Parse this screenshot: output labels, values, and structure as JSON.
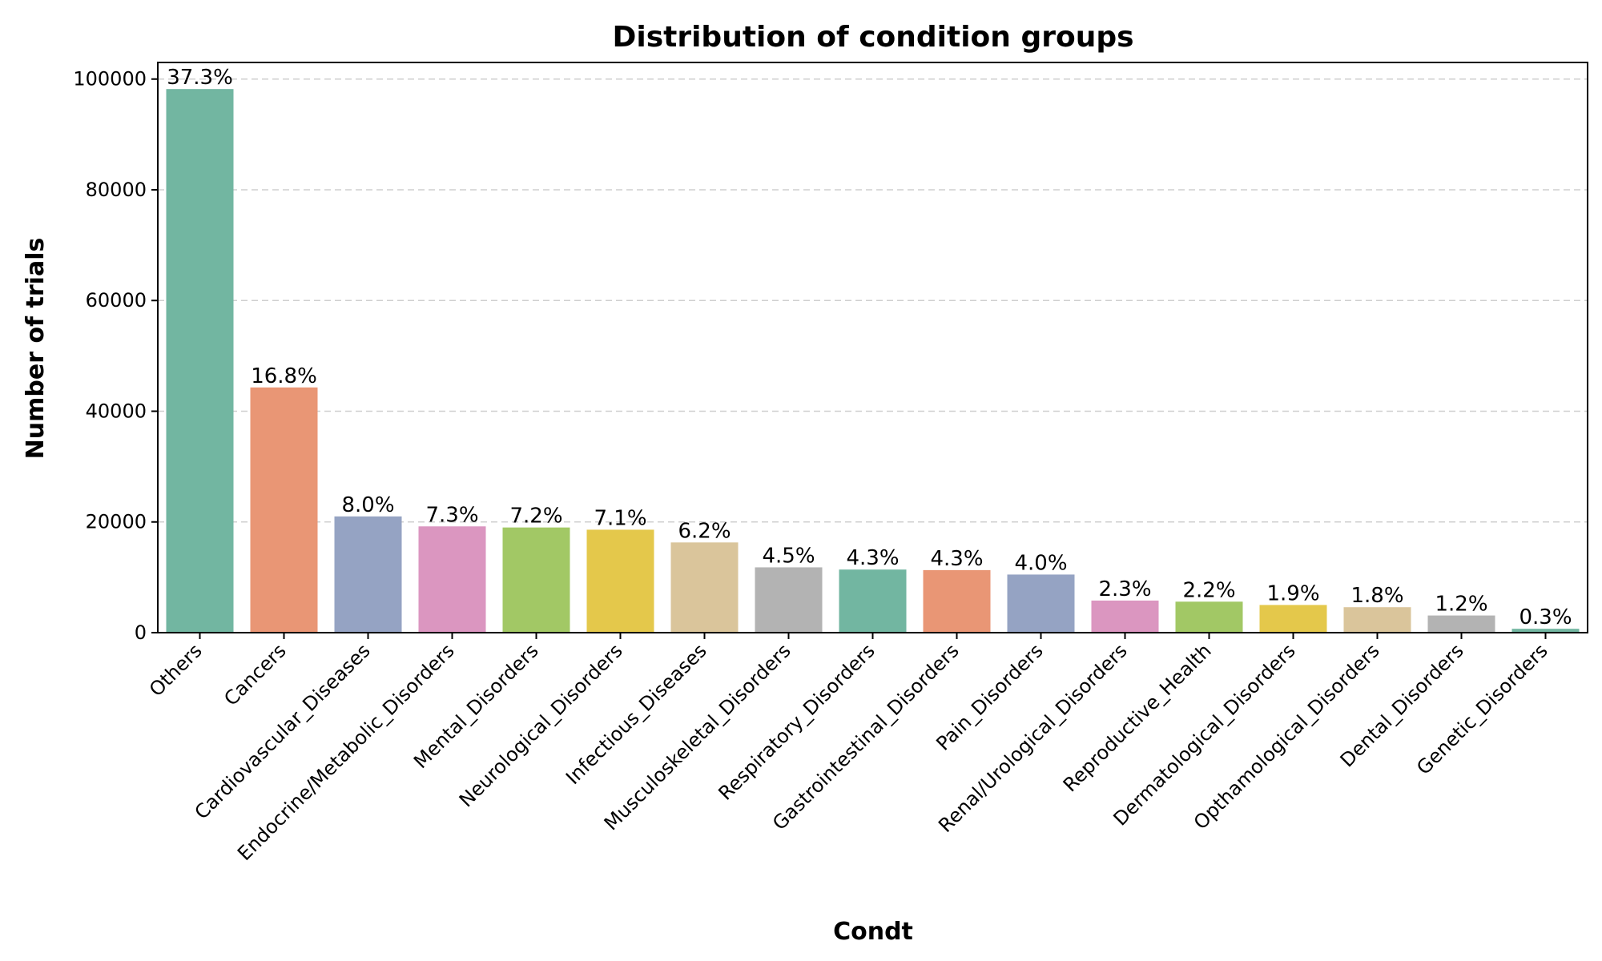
{
  "chart_data": {
    "type": "bar",
    "title": "Distribution of condition groups",
    "xlabel": "Condt",
    "ylabel": "Number of trials",
    "ylim": [
      0,
      103000
    ],
    "yticks": [
      0,
      20000,
      40000,
      60000,
      80000,
      100000
    ],
    "grid": "horizontal dashed",
    "categories": [
      "Others",
      "Cancers",
      "Cardiovascular_Diseases",
      "Endocrine/Metabolic_Disorders",
      "Mental_Disorders",
      "Neurological_Disorders",
      "Infectious_Diseases",
      "Musculoskeletal_Disorders",
      "Respiratory_Disorders",
      "Gastrointestinal_Disorders",
      "Pain_Disorders",
      "Renal/Urological_Disorders",
      "Reproductive_Health",
      "Dermatological_Disorders",
      "Opthamological_Disorders",
      "Dental_Disorders",
      "Genetic_Disorders"
    ],
    "values": [
      98200,
      44300,
      21000,
      19200,
      19000,
      18600,
      16300,
      11800,
      11400,
      11300,
      10500,
      5800,
      5600,
      5000,
      4600,
      3100,
      700
    ],
    "data_labels": [
      "37.3%",
      "16.8%",
      "8.0%",
      "7.3%",
      "7.2%",
      "7.1%",
      "6.2%",
      "4.5%",
      "4.3%",
      "4.3%",
      "4.0%",
      "2.3%",
      "2.2%",
      "1.9%",
      "1.8%",
      "1.2%",
      "0.3%"
    ],
    "colors": [
      "#72b6a1",
      "#e99675",
      "#95a3c3",
      "#db96c0",
      "#a2c865",
      "#e4c84b",
      "#dac59b",
      "#b3b3b3",
      "#72b6a1",
      "#e99675",
      "#95a3c3",
      "#db96c0",
      "#a2c865",
      "#e4c84b",
      "#dac59b",
      "#b3b3b3",
      "#72b6a1"
    ]
  }
}
